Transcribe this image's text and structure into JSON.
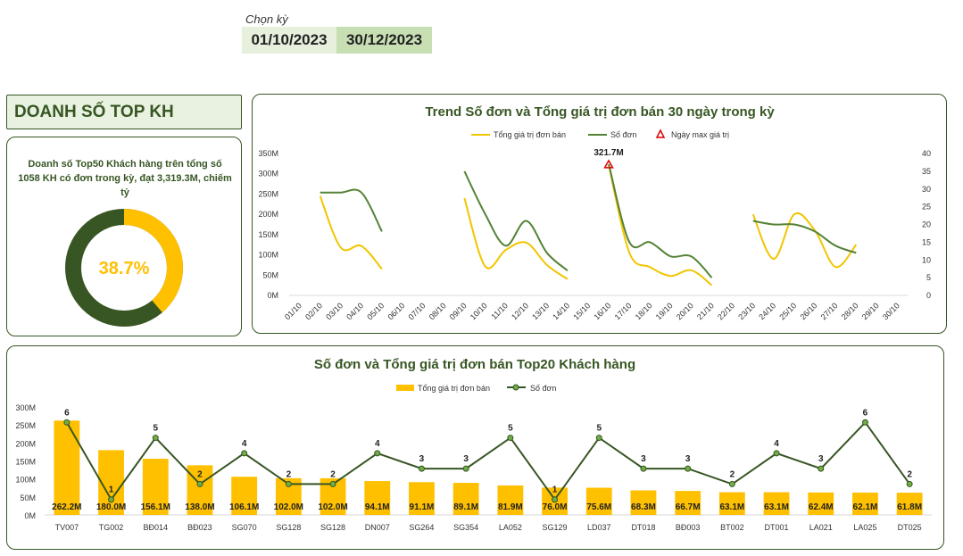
{
  "period": {
    "label": "Chọn kỳ",
    "from": "01/10/2023",
    "to": "30/12/2023"
  },
  "section_title": "DOANH SỐ TOP KH",
  "donut": {
    "description": "Doanh số Top50 Khách hàng trên tổng số 1058 KH có đơn trong kỳ, đạt 3,319.3M, chiếm tỷ",
    "percent_label": "38.7%",
    "percent": 38.7,
    "colors": {
      "share": "#ffc000",
      "rest": "#375623"
    }
  },
  "chart_data": [
    {
      "type": "line",
      "title": "Trend Số đơn và Tổng giá trị đơn bán 30 ngày trong kỳ",
      "legend": [
        "Tổng giá trị đơn bán",
        "Số đơn",
        "Ngày max giá trị"
      ],
      "categories": [
        "01/10",
        "02/10",
        "03/10",
        "04/10",
        "05/10",
        "06/10",
        "07/10",
        "08/10",
        "09/10",
        "10/10",
        "11/10",
        "12/10",
        "13/10",
        "14/10",
        "15/10",
        "16/10",
        "17/10",
        "18/10",
        "19/10",
        "20/10",
        "21/10",
        "22/10",
        "23/10",
        "24/10",
        "25/10",
        "26/10",
        "27/10",
        "28/10",
        "29/10",
        "30/10"
      ],
      "y_ticks": [
        "0M",
        "50M",
        "100M",
        "150M",
        "200M",
        "250M",
        "300M",
        "350M"
      ],
      "y_max": 350,
      "y2_ticks": [
        "0",
        "5",
        "10",
        "15",
        "20",
        "25",
        "30",
        "35",
        "40"
      ],
      "y2_max": 40,
      "series": [
        {
          "name": "Tổng giá trị đơn bán",
          "axis": "left",
          "color": "#f2c500",
          "values": [
            null,
            245,
            118,
            122,
            65,
            null,
            null,
            null,
            240,
            72,
            112,
            130,
            75,
            40,
            null,
            321.7,
            105,
            70,
            48,
            62,
            25,
            null,
            200,
            90,
            200,
            160,
            70,
            125,
            null,
            null
          ]
        },
        {
          "name": "Số đơn",
          "axis": "right",
          "color": "#548235",
          "values": [
            null,
            29,
            29,
            29,
            18,
            null,
            null,
            null,
            35,
            23,
            14,
            21,
            12,
            7,
            null,
            37,
            15,
            15,
            11,
            11,
            5,
            null,
            21,
            20,
            20,
            18,
            14,
            12,
            null,
            null
          ]
        }
      ],
      "max_point": {
        "category": "16/10",
        "value": 321.7,
        "label": "321.7M"
      }
    },
    {
      "type": "bar",
      "title": "Số đơn và Tổng giá trị đơn bán Top20 Khách hàng",
      "legend": [
        "Tổng giá trị đơn bán",
        "Số đơn"
      ],
      "categories": [
        "TV007",
        "TG002",
        "BĐ014",
        "BĐ023",
        "SG070",
        "SG128",
        "SG128",
        "DN007",
        "SG264",
        "SG354",
        "LA052",
        "SG129",
        "LD037",
        "DT018",
        "BĐ003",
        "BT002",
        "DT001",
        "LA021",
        "LA025",
        "DT025"
      ],
      "y_ticks": [
        "0M",
        "50M",
        "100M",
        "150M",
        "200M",
        "250M",
        "300M"
      ],
      "y_max": 300,
      "bar_color": "#ffc000",
      "line_color": "#375623",
      "values": [
        262.2,
        180.0,
        156.1,
        138.0,
        106.1,
        102.0,
        102.0,
        94.1,
        91.1,
        89.1,
        81.9,
        76.0,
        75.6,
        68.3,
        66.7,
        63.1,
        63.1,
        62.4,
        62.1,
        61.8
      ],
      "value_labels": [
        "262.2M",
        "180.0M",
        "156.1M",
        "138.0M",
        "106.1M",
        "102.0M",
        "102.0M",
        "94.1M",
        "91.1M",
        "89.1M",
        "81.9M",
        "76.0M",
        "75.6M",
        "68.3M",
        "66.7M",
        "63.1M",
        "63.1M",
        "62.4M",
        "62.1M",
        "61.8M"
      ],
      "orders": [
        6,
        1,
        5,
        2,
        4,
        2,
        2,
        4,
        3,
        3,
        5,
        1,
        5,
        3,
        3,
        2,
        4,
        3,
        6,
        2
      ],
      "orders_max": 7
    }
  ]
}
